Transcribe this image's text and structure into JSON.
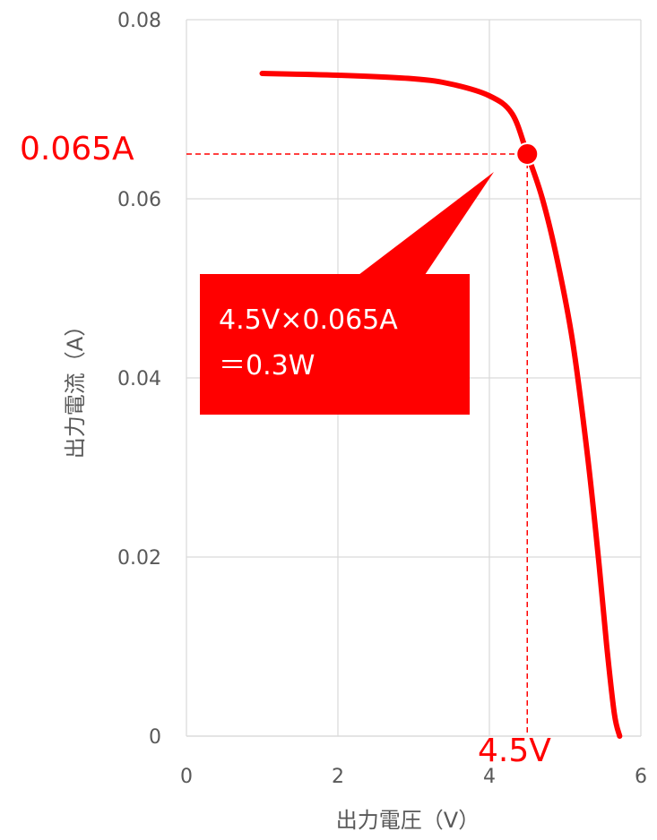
{
  "chart_data": {
    "type": "line",
    "xlabel": "出力電圧（V）",
    "ylabel": "出力電流（A）",
    "xlim": [
      0,
      6
    ],
    "ylim": [
      0,
      0.08
    ],
    "x_ticks": [
      "0",
      "2",
      "4",
      "6"
    ],
    "y_ticks": [
      "0",
      "0.02",
      "0.04",
      "0.06",
      "0.08"
    ],
    "grid": true,
    "series": [
      {
        "color": "#ff0000",
        "x": [
          1.0,
          2.0,
          3.0,
          3.5,
          4.0,
          4.3,
          4.5,
          4.7,
          4.9,
          5.1,
          5.3,
          5.45,
          5.55,
          5.65,
          5.72
        ],
        "y": [
          0.074,
          0.0738,
          0.0734,
          0.0728,
          0.0715,
          0.0695,
          0.065,
          0.06,
          0.053,
          0.044,
          0.031,
          0.019,
          0.01,
          0.0025,
          0.0
        ]
      }
    ],
    "highlight_point": {
      "x": 4.5,
      "y": 0.065,
      "color": "#ff0000"
    },
    "annotations": {
      "current_label": "0.065A",
      "voltage_label": "4.5V",
      "callout_line1": "4.5V×0.065A",
      "callout_line2": "＝0.3W",
      "callout_color": "#ff0000"
    }
  }
}
